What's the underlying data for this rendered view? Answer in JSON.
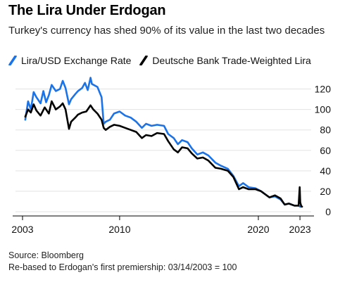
{
  "title": "The Lira Under Erdogan",
  "subtitle": "Turkey's currency has shed 90% of its value in the last two decades",
  "source": "Source: Bloomberg",
  "note": "Re-based to Erdogan's first premiership: 03/14/2003 = 100",
  "chart_data": {
    "type": "line",
    "ylim": [
      0,
      130
    ],
    "xlim": [
      2003,
      2023.3
    ],
    "x_ticks": [
      2003,
      2010,
      2020,
      2023
    ],
    "y_ticks": [
      0,
      20,
      40,
      60,
      80,
      100,
      120
    ],
    "grid": "horizontal",
    "legend_position": "top",
    "series": [
      {
        "name": "Lira/USD Exchange Rate",
        "color": "#1a73e8",
        "x": [
          2003.2,
          2003.4,
          2003.6,
          2003.8,
          2004.0,
          2004.3,
          2004.5,
          2004.7,
          2004.9,
          2005.1,
          2005.4,
          2005.7,
          2005.9,
          2006.1,
          2006.35,
          2006.5,
          2006.8,
          2007.0,
          2007.3,
          2007.5,
          2007.7,
          2007.9,
          2008.0,
          2008.4,
          2008.7,
          2008.85,
          2009.0,
          2009.3,
          2009.6,
          2010.0,
          2010.4,
          2010.8,
          2011.2,
          2011.6,
          2011.9,
          2012.3,
          2012.7,
          2013.2,
          2013.5,
          2013.9,
          2014.2,
          2014.5,
          2014.9,
          2015.2,
          2015.6,
          2016.0,
          2016.4,
          2016.9,
          2017.3,
          2017.8,
          2018.2,
          2018.6,
          2018.9,
          2019.3,
          2019.8,
          2020.2,
          2020.8,
          2021.2,
          2021.6,
          2021.9,
          2022.2,
          2022.6,
          2022.9,
          2023.0,
          2023.15
        ],
        "values": [
          90,
          108,
          100,
          117,
          112,
          106,
          118,
          107,
          114,
          124,
          118,
          120,
          128,
          121,
          105,
          110,
          115,
          118,
          121,
          126,
          119,
          131,
          125,
          122,
          112,
          86,
          88,
          90,
          96,
          98,
          94,
          92,
          88,
          82,
          86,
          84,
          85,
          84,
          76,
          72,
          66,
          70,
          68,
          62,
          56,
          58,
          55,
          48,
          45,
          42,
          35,
          25,
          28,
          24,
          23,
          20,
          14,
          15,
          12,
          7,
          8,
          6,
          6,
          5,
          5
        ]
      },
      {
        "name": "Deutsche Bank Trade-Weighted Lira",
        "color": "#000000",
        "x": [
          2003.2,
          2003.4,
          2003.6,
          2003.8,
          2004.0,
          2004.3,
          2004.6,
          2004.9,
          2005.1,
          2005.4,
          2005.7,
          2005.9,
          2006.1,
          2006.35,
          2006.5,
          2006.8,
          2007.0,
          2007.3,
          2007.6,
          2007.9,
          2008.1,
          2008.4,
          2008.7,
          2008.85,
          2009.0,
          2009.3,
          2009.6,
          2010.0,
          2010.4,
          2010.8,
          2011.2,
          2011.6,
          2011.9,
          2012.3,
          2012.7,
          2013.2,
          2013.5,
          2013.9,
          2014.2,
          2014.5,
          2014.9,
          2015.2,
          2015.6,
          2016.0,
          2016.4,
          2016.9,
          2017.3,
          2017.8,
          2018.2,
          2018.6,
          2018.9,
          2019.3,
          2019.8,
          2020.2,
          2020.8,
          2021.2,
          2021.6,
          2021.9,
          2022.2,
          2022.6,
          2022.9,
          2022.98,
          2023.02,
          2023.1,
          2023.15
        ],
        "values": [
          93,
          100,
          97,
          105,
          99,
          94,
          102,
          96,
          108,
          100,
          103,
          106,
          100,
          81,
          88,
          92,
          95,
          97,
          98,
          104,
          100,
          96,
          90,
          82,
          80,
          83,
          85,
          84,
          82,
          80,
          78,
          72,
          75,
          74,
          77,
          76,
          69,
          61,
          58,
          63,
          62,
          57,
          52,
          53,
          50,
          43,
          42,
          40,
          34,
          22,
          24,
          22,
          22,
          20,
          14,
          16,
          13,
          7,
          8,
          6,
          6,
          24,
          9,
          5,
          5
        ]
      }
    ]
  }
}
